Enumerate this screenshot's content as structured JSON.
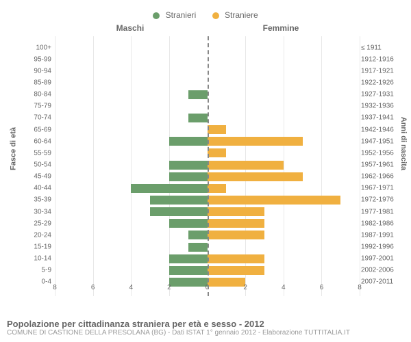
{
  "legend": {
    "male": {
      "label": "Stranieri",
      "color": "#6b9e6b"
    },
    "female": {
      "label": "Straniere",
      "color": "#f0b040"
    }
  },
  "headers": {
    "left": "Maschi",
    "right": "Femmine"
  },
  "axis_labels": {
    "left": "Fasce di età",
    "right": "Anni di nascita"
  },
  "chart": {
    "type": "population-pyramid",
    "xmax": 8,
    "xtick_step": 2,
    "male_color": "#6b9e6b",
    "female_color": "#f0b040",
    "grid_color": "#e8e8e8",
    "center_line_color": "#888888",
    "rows": [
      {
        "age": "100+",
        "year": "≤ 1911",
        "male": 0,
        "female": 0
      },
      {
        "age": "95-99",
        "year": "1912-1916",
        "male": 0,
        "female": 0
      },
      {
        "age": "90-94",
        "year": "1917-1921",
        "male": 0,
        "female": 0
      },
      {
        "age": "85-89",
        "year": "1922-1926",
        "male": 0,
        "female": 0
      },
      {
        "age": "80-84",
        "year": "1927-1931",
        "male": 1,
        "female": 0
      },
      {
        "age": "75-79",
        "year": "1932-1936",
        "male": 0,
        "female": 0
      },
      {
        "age": "70-74",
        "year": "1937-1941",
        "male": 1,
        "female": 0
      },
      {
        "age": "65-69",
        "year": "1942-1946",
        "male": 0,
        "female": 1
      },
      {
        "age": "60-64",
        "year": "1947-1951",
        "male": 2,
        "female": 5
      },
      {
        "age": "55-59",
        "year": "1952-1956",
        "male": 0,
        "female": 1
      },
      {
        "age": "50-54",
        "year": "1957-1961",
        "male": 2,
        "female": 4
      },
      {
        "age": "45-49",
        "year": "1962-1966",
        "male": 2,
        "female": 5
      },
      {
        "age": "40-44",
        "year": "1967-1971",
        "male": 4,
        "female": 1
      },
      {
        "age": "35-39",
        "year": "1972-1976",
        "male": 3,
        "female": 7
      },
      {
        "age": "30-34",
        "year": "1977-1981",
        "male": 3,
        "female": 3
      },
      {
        "age": "25-29",
        "year": "1982-1986",
        "male": 2,
        "female": 3
      },
      {
        "age": "20-24",
        "year": "1987-1991",
        "male": 1,
        "female": 3
      },
      {
        "age": "15-19",
        "year": "1992-1996",
        "male": 1,
        "female": 0
      },
      {
        "age": "10-14",
        "year": "1997-2001",
        "male": 2,
        "female": 3
      },
      {
        "age": "5-9",
        "year": "2002-2006",
        "male": 2,
        "female": 3
      },
      {
        "age": "0-4",
        "year": "2007-2011",
        "male": 2,
        "female": 2
      }
    ]
  },
  "footer": {
    "title": "Popolazione per cittadinanza straniera per età e sesso - 2012",
    "subtitle": "COMUNE DI CASTIONE DELLA PRESOLANA (BG) - Dati ISTAT 1° gennaio 2012 - Elaborazione TUTTITALIA.IT"
  }
}
